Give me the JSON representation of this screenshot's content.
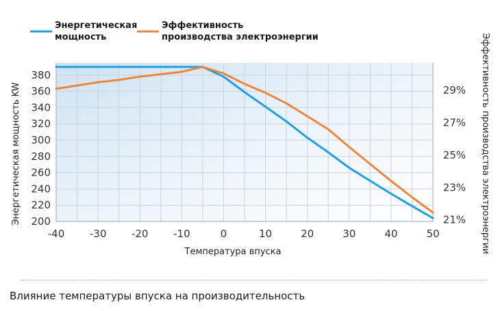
{
  "chart_data": {
    "type": "line",
    "legend_position": "top-left",
    "grid": true,
    "x": [
      -40,
      -35,
      -30,
      -25,
      -20,
      -15,
      -10,
      -5,
      0,
      5,
      10,
      15,
      20,
      25,
      30,
      35,
      40,
      45,
      50
    ],
    "xticks": [
      "-40",
      "-30",
      "-20",
      "-10",
      "0",
      "10",
      "20",
      "30",
      "40",
      "50"
    ],
    "xlim": [
      -40,
      50
    ],
    "xlabel": "Температура впуска",
    "ylabel_left": "Энергетическая мощность KW",
    "ylabel_right": "Эффективность производства электроэнергии",
    "ylim_left": [
      200,
      395
    ],
    "ylim_right": [
      20.9,
      30.7
    ],
    "yticks_left": [
      "200",
      "220",
      "240",
      "260",
      "280",
      "300",
      "320",
      "340",
      "360",
      "380"
    ],
    "yticks_right": [
      "21%",
      "23%",
      "25%",
      "27%",
      "29%"
    ],
    "series": [
      {
        "name": "Энергетическая\nмощность",
        "axis": "left",
        "color": "#1ca0e3",
        "values": [
          390,
          390,
          390,
          390,
          390,
          390,
          390,
          390,
          378,
          359,
          341,
          323,
          303,
          285,
          266,
          250,
          234,
          219,
          204
        ]
      },
      {
        "name": "Эффективность\nпроизводства электроэнергии",
        "axis": "right",
        "color": "#f08539",
        "values": [
          29.1,
          29.3,
          29.5,
          29.65,
          29.85,
          30.0,
          30.15,
          30.45,
          30.05,
          29.4,
          28.85,
          28.2,
          27.4,
          26.6,
          25.5,
          24.45,
          23.4,
          22.4,
          21.45
        ]
      }
    ]
  },
  "caption": "Влияние температуры впуска на производительность"
}
